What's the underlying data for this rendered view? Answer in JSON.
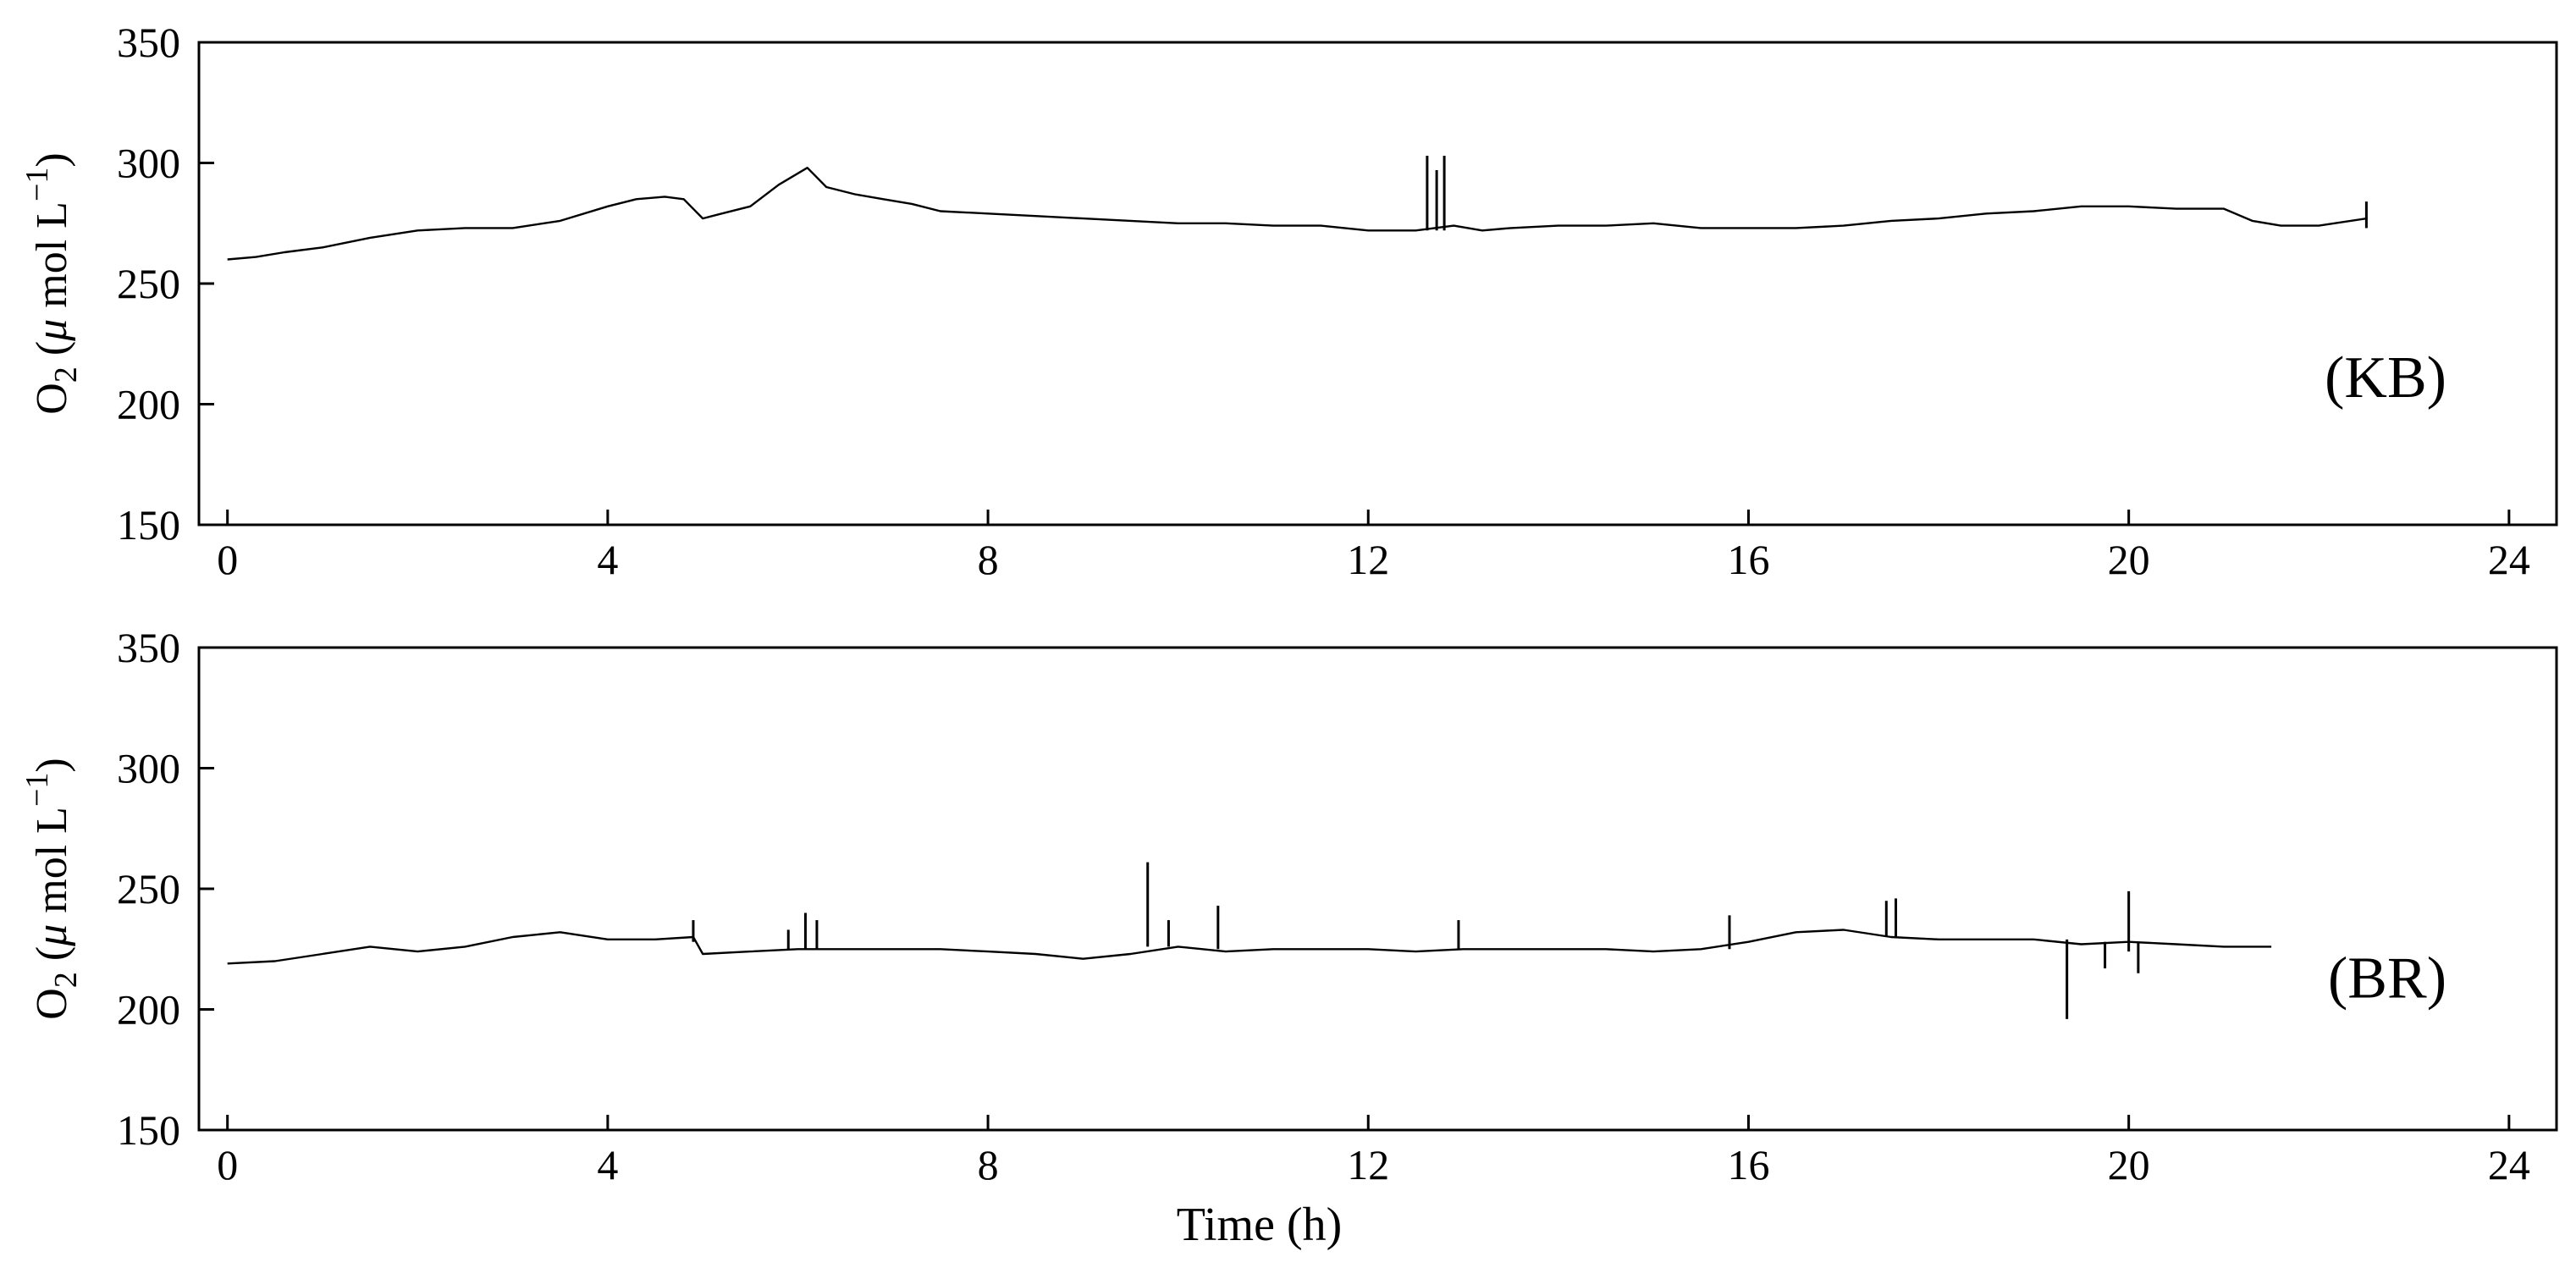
{
  "chart_data": [
    {
      "type": "line",
      "panel_label": "(KB)",
      "ylabel": {
        "prefix": "O",
        "sub": "2",
        "mid": " (",
        "mu": "μ",
        "unit": " mol L",
        "sup": "−1",
        "close": ")"
      },
      "xlabel": "",
      "xlim": [
        -0.3,
        24.5
      ],
      "ylim": [
        150,
        350
      ],
      "xticks": [
        0,
        4,
        8,
        12,
        16,
        20,
        24
      ],
      "xtick_labels": [
        "0",
        "4",
        "8",
        "12",
        "16",
        "20",
        "24"
      ],
      "yticks": [
        150,
        200,
        250,
        300,
        350
      ],
      "ytick_labels": [
        "150",
        "200",
        "250",
        "300",
        "350"
      ],
      "grid": false,
      "series": [
        {
          "x": [
            0,
            0.3,
            0.6,
            1.0,
            1.5,
            2.0,
            2.5,
            3.0,
            3.5,
            4.0,
            4.3,
            4.6,
            4.8,
            5.0,
            5.2,
            5.5,
            5.8,
            6.1,
            6.3,
            6.6,
            6.9,
            7.2,
            7.5,
            8.0,
            8.5,
            9.0,
            9.5,
            10.0,
            10.5,
            11.0,
            11.5,
            12.0,
            12.5,
            12.7,
            12.9,
            13.2,
            13.5,
            14.0,
            14.5,
            15.0,
            15.5,
            16.0,
            16.5,
            17.0,
            17.5,
            18.0,
            18.5,
            19.0,
            19.5,
            20.0,
            20.5,
            21.0,
            21.3,
            21.6,
            22.0,
            22.5
          ],
          "y": [
            260,
            261,
            263,
            265,
            269,
            272,
            273,
            273,
            276,
            282,
            285,
            286,
            285,
            277,
            279,
            282,
            291,
            298,
            290,
            287,
            285,
            283,
            280,
            279,
            278,
            277,
            276,
            275,
            275,
            274,
            274,
            272,
            272,
            273,
            274,
            272,
            273,
            274,
            274,
            275,
            273,
            273,
            273,
            274,
            276,
            277,
            279,
            280,
            282,
            282,
            281,
            281,
            276,
            274,
            274,
            277
          ]
        }
      ],
      "spikes": [
        {
          "x": 12.62,
          "y0": 272,
          "y1": 303
        },
        {
          "x": 12.72,
          "y0": 272,
          "y1": 297
        },
        {
          "x": 12.8,
          "y0": 272,
          "y1": 303
        },
        {
          "x": 22.5,
          "y0": 273,
          "y1": 284
        }
      ]
    },
    {
      "type": "line",
      "panel_label": "(BR)",
      "ylabel": {
        "prefix": "O",
        "sub": "2",
        "mid": " (",
        "mu": "μ",
        "unit": " mol L",
        "sup": "−1",
        "close": ")"
      },
      "xlabel": "Time (h)",
      "xlim": [
        -0.3,
        24.5
      ],
      "ylim": [
        150,
        350
      ],
      "xticks": [
        0,
        4,
        8,
        12,
        16,
        20,
        24
      ],
      "xtick_labels": [
        "0",
        "4",
        "8",
        "12",
        "16",
        "20",
        "24"
      ],
      "yticks": [
        150,
        200,
        250,
        300,
        350
      ],
      "ytick_labels": [
        "150",
        "200",
        "250",
        "300",
        "350"
      ],
      "grid": false,
      "series": [
        {
          "x": [
            0,
            0.5,
            1.0,
            1.5,
            2.0,
            2.5,
            3.0,
            3.5,
            4.0,
            4.5,
            4.9,
            5.0,
            5.5,
            6.0,
            6.5,
            7.0,
            7.5,
            8.0,
            8.5,
            9.0,
            9.5,
            10.0,
            10.5,
            11.0,
            11.5,
            12.0,
            12.5,
            13.0,
            13.5,
            14.0,
            14.5,
            15.0,
            15.5,
            16.0,
            16.5,
            17.0,
            17.5,
            18.0,
            18.5,
            19.0,
            19.5,
            20.0,
            20.5,
            21.0,
            21.5
          ],
          "y": [
            219,
            220,
            223,
            226,
            224,
            226,
            230,
            232,
            229,
            229,
            230,
            223,
            224,
            225,
            225,
            225,
            225,
            224,
            223,
            221,
            223,
            226,
            224,
            225,
            225,
            225,
            224,
            225,
            225,
            225,
            225,
            224,
            225,
            228,
            232,
            233,
            230,
            229,
            229,
            229,
            227,
            228,
            227,
            226,
            226
          ]
        }
      ],
      "spikes": [
        {
          "x": 4.9,
          "y0": 228,
          "y1": 237
        },
        {
          "x": 5.9,
          "y0": 225,
          "y1": 233
        },
        {
          "x": 6.08,
          "y0": 225,
          "y1": 240
        },
        {
          "x": 6.2,
          "y0": 225,
          "y1": 237
        },
        {
          "x": 9.68,
          "y0": 226,
          "y1": 261
        },
        {
          "x": 9.9,
          "y0": 226,
          "y1": 237
        },
        {
          "x": 10.42,
          "y0": 225,
          "y1": 243
        },
        {
          "x": 12.95,
          "y0": 225,
          "y1": 237
        },
        {
          "x": 15.8,
          "y0": 225,
          "y1": 239
        },
        {
          "x": 17.45,
          "y0": 230,
          "y1": 245
        },
        {
          "x": 17.55,
          "y0": 230,
          "y1": 246
        },
        {
          "x": 19.35,
          "y0": 196,
          "y1": 229
        },
        {
          "x": 19.75,
          "y0": 217,
          "y1": 228
        },
        {
          "x": 20.0,
          "y0": 224,
          "y1": 249
        },
        {
          "x": 20.1,
          "y0": 215,
          "y1": 228
        }
      ]
    }
  ]
}
